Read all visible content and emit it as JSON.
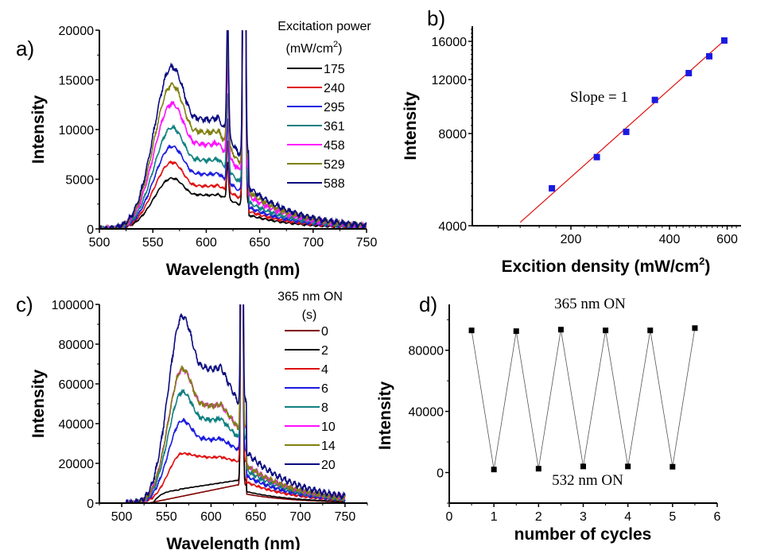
{
  "chart_data": [
    {
      "panel": "a)",
      "type": "line",
      "xlabel": "Wavelength (nm)",
      "ylabel": "Intensity",
      "xlim": [
        500,
        750
      ],
      "ylim": [
        0,
        20000
      ],
      "xticks": [
        500,
        550,
        600,
        650,
        700,
        750
      ],
      "yticks": [
        0,
        5000,
        10000,
        15000,
        20000
      ],
      "legend_title": [
        "Excitation power",
        "(mW/cm",
        "2",
        ")"
      ],
      "legend_position": "top-right",
      "series": [
        {
          "name": "175",
          "color": "#000000",
          "peak565": 5100,
          "shoulder605": 3400,
          "dip628": 2500
        },
        {
          "name": "240",
          "color": "#e01010",
          "peak565": 6700,
          "shoulder605": 4300,
          "dip628": 3200
        },
        {
          "name": "295",
          "color": "#1a1ae0",
          "peak565": 8300,
          "shoulder605": 5500,
          "dip628": 3900
        },
        {
          "name": "361",
          "color": "#108080",
          "peak565": 10200,
          "shoulder605": 6900,
          "dip628": 4800
        },
        {
          "name": "458",
          "color": "#ff10ff",
          "peak565": 12600,
          "shoulder605": 8500,
          "dip628": 6000
        },
        {
          "name": "529",
          "color": "#808010",
          "peak565": 14500,
          "shoulder605": 9700,
          "dip628": 6800
        },
        {
          "name": "588",
          "color": "#0a0a80",
          "peak565": 16300,
          "shoulder605": 11000,
          "dip628": 7600
        }
      ]
    },
    {
      "panel": "b)",
      "type": "scatter",
      "xlabel": "Excition density",
      "xlabel_unit": [
        "(mW/cm",
        "2",
        ")"
      ],
      "ylabel": "Intensity",
      "xscale": "log",
      "yscale": "log",
      "xlim": [
        100,
        640
      ],
      "ylim": [
        4000,
        17500
      ],
      "xticks": [
        200,
        400,
        600
      ],
      "yticks": [
        4000,
        8000,
        12000,
        16000
      ],
      "annotation": "Slope = 1",
      "marker_color": "#1a1ae0",
      "fit_color": "#e01010",
      "fit_x": [
        140,
        590
      ],
      "x": [
        175,
        240,
        295,
        361,
        458,
        529,
        588
      ],
      "y": [
        5300,
        6700,
        8100,
        10300,
        12600,
        14300,
        16100
      ]
    },
    {
      "panel": "c)",
      "type": "line",
      "xlabel": "Wavelength (nm)",
      "ylabel": "Intensity",
      "xlim": [
        475,
        775
      ],
      "ylim": [
        0,
        100000
      ],
      "xticks": [
        500,
        550,
        600,
        650,
        700,
        750
      ],
      "yticks": [
        0,
        20000,
        40000,
        60000,
        80000,
        100000
      ],
      "legend_title": [
        "365 nm ON",
        "(s)"
      ],
      "legend_position": "top-right",
      "series": [
        {
          "name": "0",
          "color": "#800000",
          "peak565": 1500,
          "shoulder605": 6000,
          "dip628": 9000
        },
        {
          "name": "2",
          "color": "#000000",
          "peak565": 7000,
          "shoulder605": 10000,
          "dip628": 11500
        },
        {
          "name": "4",
          "color": "#e01010",
          "peak565": 25000,
          "shoulder605": 23000,
          "dip628": 21000
        },
        {
          "name": "6",
          "color": "#1a1ae0",
          "peak565": 41500,
          "shoulder605": 32000,
          "dip628": 27000
        },
        {
          "name": "8",
          "color": "#108080",
          "peak565": 56000,
          "shoulder605": 42000,
          "dip628": 33000
        },
        {
          "name": "10",
          "color": "#ff10ff",
          "peak565": 67500,
          "shoulder605": 49000,
          "dip628": 38000
        },
        {
          "name": "14",
          "color": "#808010",
          "peak565": 67500,
          "shoulder605": 49000,
          "dip628": 38000
        },
        {
          "name": "20",
          "color": "#0a0a80",
          "peak565": 94000,
          "shoulder605": 67500,
          "dip628": 51000
        }
      ]
    },
    {
      "panel": "d)",
      "type": "line",
      "xlabel": "number of cycles",
      "ylabel": "Intensity",
      "xlim": [
        0,
        6
      ],
      "ylim": [
        -20000,
        110000
      ],
      "xticks": [
        0,
        1,
        2,
        3,
        4,
        5,
        6
      ],
      "yticks": [
        0,
        40000,
        80000
      ],
      "annotations": [
        "365 nm ON",
        "532 nm ON"
      ],
      "x": [
        0.5,
        1,
        1.5,
        2,
        2.5,
        3,
        3.5,
        4,
        4.5,
        5,
        5.5
      ],
      "y": [
        93000,
        2000,
        92500,
        2500,
        93500,
        4000,
        93000,
        4000,
        93000,
        3800,
        94500
      ]
    }
  ]
}
